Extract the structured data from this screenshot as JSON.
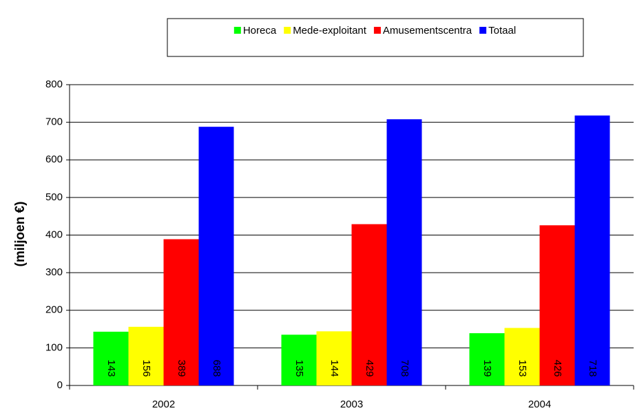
{
  "chart_data": {
    "type": "bar",
    "y_axis_label": "(miljoen €)",
    "categories": [
      "2002",
      "2003",
      "2004"
    ],
    "series": [
      {
        "name": "Horeca",
        "color": "#00ff00",
        "label_color": "#000000",
        "values": [
          143,
          135,
          139
        ]
      },
      {
        "name": "Mede-exploitant",
        "color": "#ffff00",
        "label_color": "#000000",
        "values": [
          156,
          144,
          153
        ]
      },
      {
        "name": "Amusementscentra",
        "color": "#ff0000",
        "label_color": "#ffffff",
        "values": [
          389,
          429,
          426
        ]
      },
      {
        "name": "Totaal",
        "color": "#0000ff",
        "label_color": "#ffffff",
        "values": [
          688,
          708,
          718
        ]
      }
    ],
    "ylim": [
      0,
      800
    ],
    "yticks": [
      0,
      100,
      200,
      300,
      400,
      500,
      600,
      700,
      800
    ],
    "grid": true,
    "legend": "top"
  }
}
